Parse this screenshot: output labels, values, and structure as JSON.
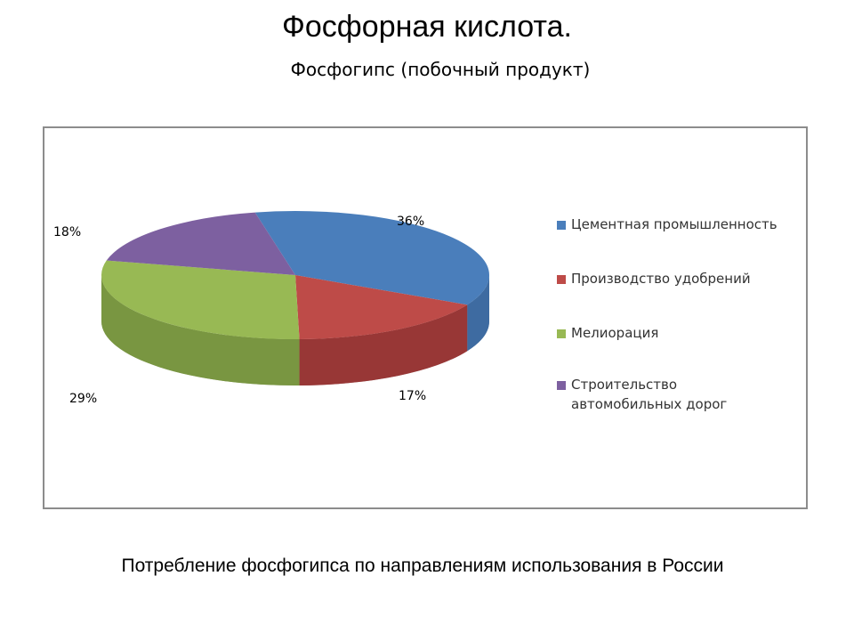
{
  "slide": {
    "title": "Фосфорная кислота.",
    "subtitle": "Фосфогипс (побочный продукт)",
    "caption": "Потребление фосфогипса по направлениям использования в России"
  },
  "chart_data": {
    "type": "pie",
    "title": "",
    "categories": [
      "Цементная промышленность",
      "Производство удобрений",
      "Мелиорация",
      "Строительство автомобильных дорог"
    ],
    "values": [
      36,
      17,
      29,
      18
    ],
    "labels": [
      "36%",
      "17%",
      "29%",
      "18%"
    ],
    "colors": [
      "#4a7ebb",
      "#be4b48",
      "#98b954",
      "#7d60a0"
    ],
    "side_colors": [
      "#2f5680",
      "#6b1f1f",
      "#556b2a",
      "#4b3966"
    ],
    "legend_position": "right",
    "style": "3d"
  }
}
